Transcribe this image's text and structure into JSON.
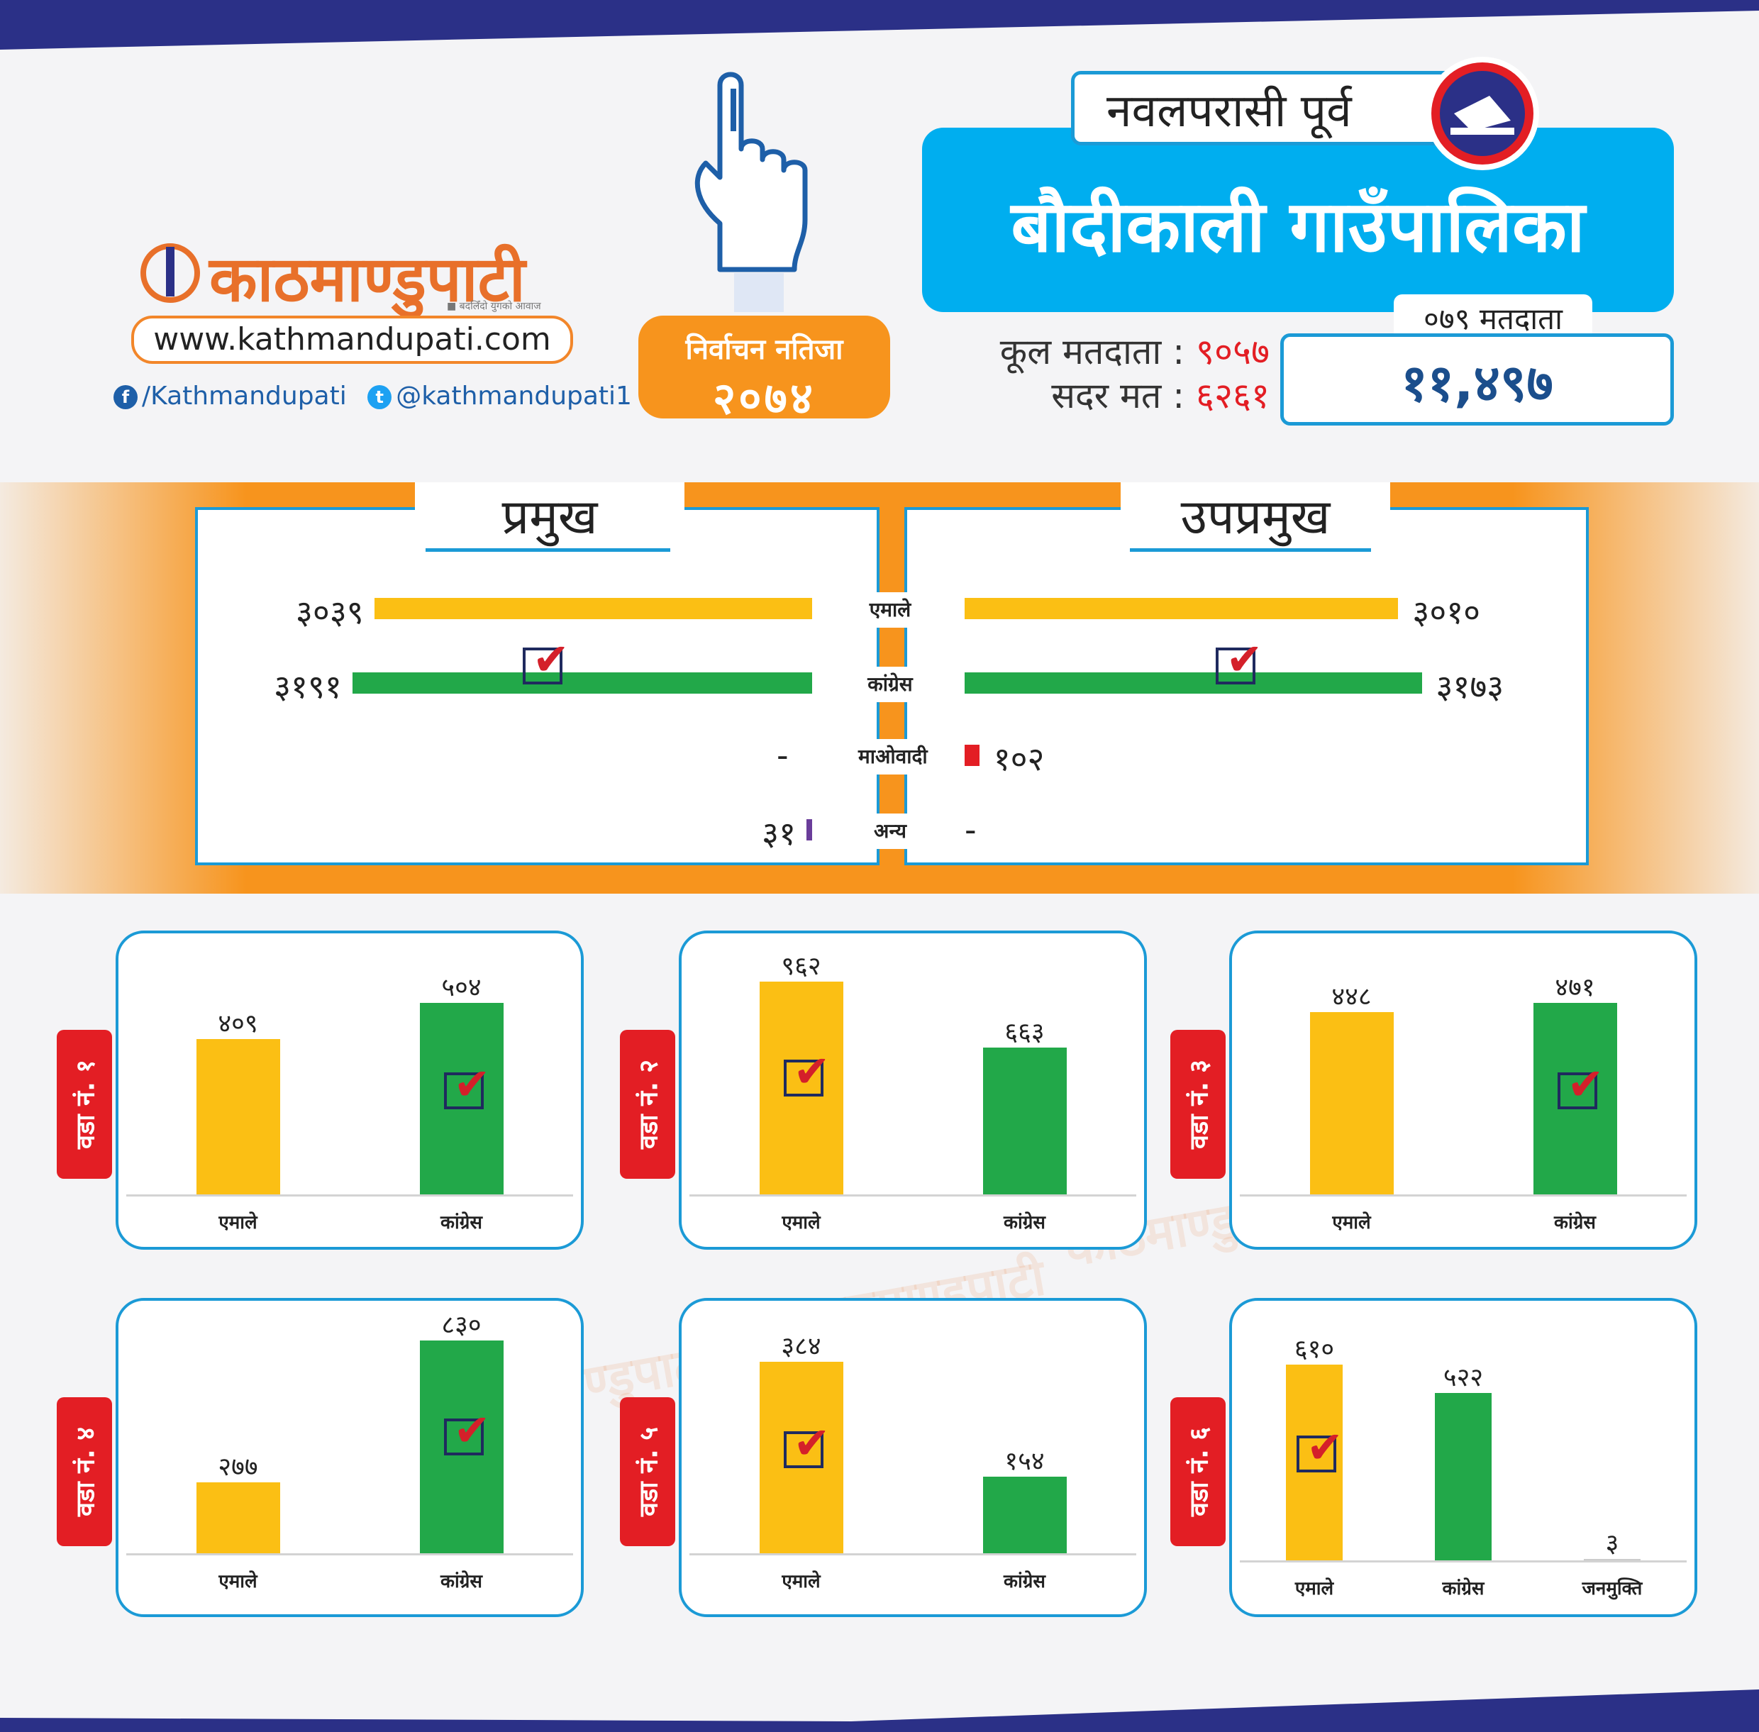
{
  "site": {
    "logo_text": "काठमाण्डुपाटी",
    "logo_tagline": "■ बदलिँदो युगको आवाज",
    "url": "www.kathmandupati.com",
    "facebook": "/Kathmandupati",
    "twitter": "@kathmandupati1",
    "watermark": "काठमाण्डुपाटी"
  },
  "badge": {
    "line1": "निर्वाचन नतिजा",
    "line2": "२०७४"
  },
  "header": {
    "district": "नवलपरासी पूर्व",
    "municipality": "बौदीकाली  गाउँपालिका",
    "voters_2079_label": "०७९ मतदाता",
    "voters_2079_value": "११,४९७",
    "total_voters_label": "कूल मतदाता :",
    "total_voters_value": "९०५७",
    "valid_votes_label": "सदर मत :",
    "valid_votes_value": "६२६१"
  },
  "colors": {
    "uml": "#fbbf14",
    "congress": "#22a849",
    "maoist": "#e31e24",
    "other": "#6a3d9a",
    "accent_blue": "#1b9ad6",
    "orange": "#f7941d",
    "navy": "#2b3087"
  },
  "chart_data": [
    {
      "type": "bar",
      "title": "प्रमुख",
      "orientation": "horizontal",
      "categories": [
        "एमाले",
        "कांग्रेस",
        "माओवादी",
        "अन्य"
      ],
      "values": [
        3039,
        3191,
        null,
        31
      ],
      "labels": [
        "३०३९",
        "३१९१",
        "-",
        "३१"
      ],
      "winner": "कांग्रेस"
    },
    {
      "type": "bar",
      "title": "उपप्रमुख",
      "orientation": "horizontal",
      "categories": [
        "एमाले",
        "कांग्रेस",
        "माओवादी",
        "अन्य"
      ],
      "values": [
        3010,
        3173,
        102,
        null
      ],
      "labels": [
        "३०१०",
        "३१७३",
        "१०२",
        "-"
      ],
      "winner": "कांग्रेस"
    },
    {
      "type": "bar",
      "title": "वडा नं. १",
      "categories": [
        "एमाले",
        "कांग्रेस"
      ],
      "values": [
        409,
        504
      ],
      "labels": [
        "४०९",
        "५०४"
      ],
      "winner": "कांग्रेस"
    },
    {
      "type": "bar",
      "title": "वडा नं. २",
      "categories": [
        "एमाले",
        "कांग्रेस"
      ],
      "values": [
        962,
        663
      ],
      "labels": [
        "९६२",
        "६६३"
      ],
      "winner": "एमाले"
    },
    {
      "type": "bar",
      "title": "वडा नं. ३",
      "categories": [
        "एमाले",
        "कांग्रेस"
      ],
      "values": [
        448,
        471
      ],
      "labels": [
        "४४८",
        "४७१"
      ],
      "winner": "कांग्रेस"
    },
    {
      "type": "bar",
      "title": "वडा नं. ४",
      "categories": [
        "एमाले",
        "कांग्रेस"
      ],
      "values": [
        277,
        830
      ],
      "labels": [
        "२७७",
        "८३०"
      ],
      "winner": "कांग्रेस"
    },
    {
      "type": "bar",
      "title": "वडा नं. ५",
      "categories": [
        "एमाले",
        "कांग्रेस"
      ],
      "values": [
        384,
        154
      ],
      "labels": [
        "३८४",
        "१५४"
      ],
      "winner": "एमाले"
    },
    {
      "type": "bar",
      "title": "वडा नं. ६",
      "categories": [
        "एमाले",
        "कांग्रेस",
        "जनमुक्ति"
      ],
      "values": [
        610,
        522,
        3
      ],
      "labels": [
        "६१०",
        "५२२",
        "३"
      ],
      "winner": "एमाले"
    }
  ]
}
